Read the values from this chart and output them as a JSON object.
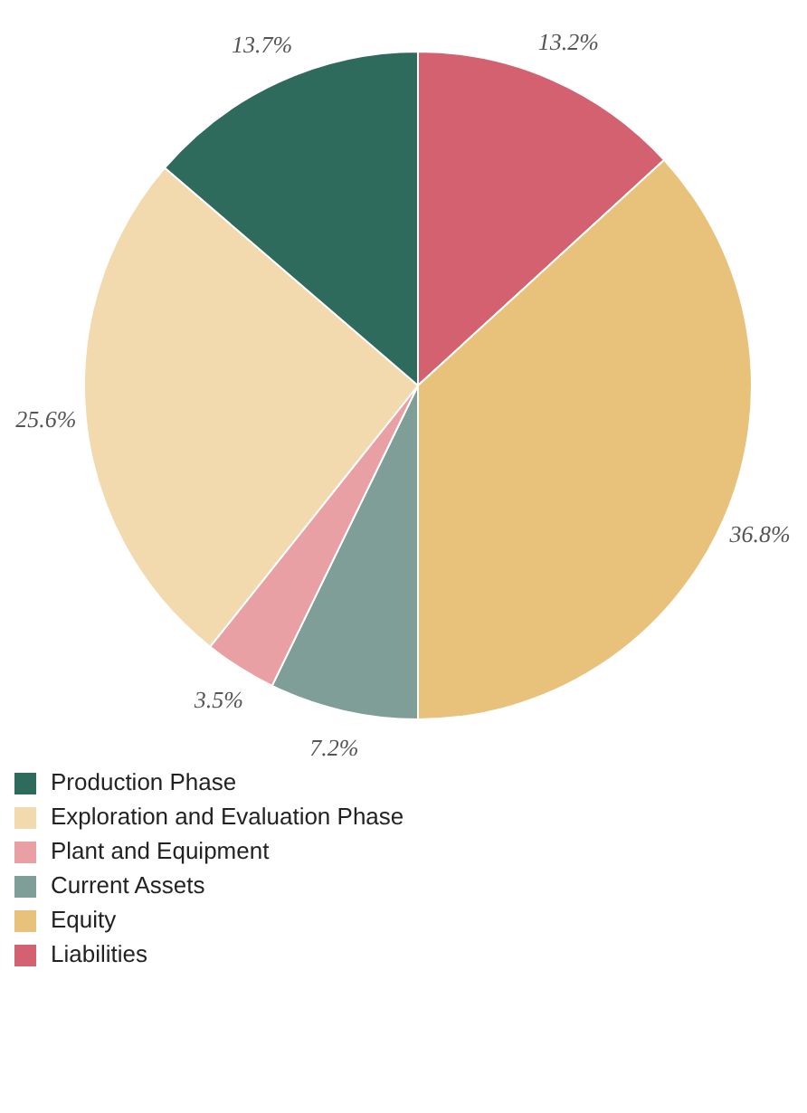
{
  "chart_data": {
    "type": "pie",
    "categories": [
      "Liabilities",
      "Equity",
      "Current Assets",
      "Plant and Equipment",
      "Exploration and Evaluation Phase",
      "Production Phase"
    ],
    "values": [
      13.2,
      36.8,
      7.2,
      3.5,
      25.6,
      13.7
    ],
    "value_labels": [
      "13.2%",
      "36.8%",
      "7.2%",
      "3.5%",
      "25.6%",
      "13.7%"
    ],
    "colors": [
      "#d3616f",
      "#e8c27a",
      "#7f9e98",
      "#e8a0a5",
      "#f2d9ae",
      "#2f6b5c"
    ],
    "legend": "bottom left"
  }
}
